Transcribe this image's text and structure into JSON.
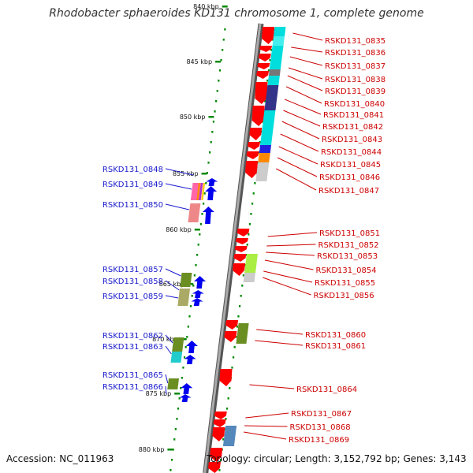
{
  "title": "Rhodobacter sphaeroides KD131 chromosome 1, complete genome",
  "accession": "Accession: NC_011963",
  "summary": "Topology: circular; Length: 3,152,792 bp; Genes: 3,143",
  "colors": {
    "forward_gene": "#ff0000",
    "reverse_gene": "#0000ee",
    "backbone": "#888888",
    "tick": "#008800",
    "label_left": "#1a1acc",
    "label_right": "#cc0000"
  },
  "kbp_markers": [
    "840 kbp",
    "845 kbp",
    "850 kbp",
    "855 kbp",
    "860 kbp",
    "865 kbp",
    "870 kbp",
    "875 kbp",
    "880 kbp"
  ],
  "labels_left": [
    "RSKD131_0848",
    "RSKD131_0849",
    "RSKD131_0850",
    "RSKD131_0857",
    "RSKD131_0858",
    "RSKD131_0859",
    "RSKD131_0862",
    "RSKD131_0863",
    "RSKD131_0865",
    "RSKD131_0866"
  ],
  "labels_right": [
    "RSKD131_0835",
    "RSKD131_0836",
    "RSKD131_0837",
    "RSKD131_0838",
    "RSKD131_0839",
    "RSKD131_0840",
    "RSKD131_0841",
    "RSKD131_0842",
    "RSKD131_0843",
    "RSKD131_0844",
    "RSKD131_0845",
    "RSKD131_0846",
    "RSKD131_0847",
    "RSKD131_0851",
    "RSKD131_0852",
    "RSKD131_0853",
    "RSKD131_0854",
    "RSKD131_0855",
    "RSKD131_0856",
    "RSKD131_0860",
    "RSKD131_0861",
    "RSKD131_0864",
    "RSKD131_0867",
    "RSKD131_0868",
    "RSKD131_0869"
  ]
}
